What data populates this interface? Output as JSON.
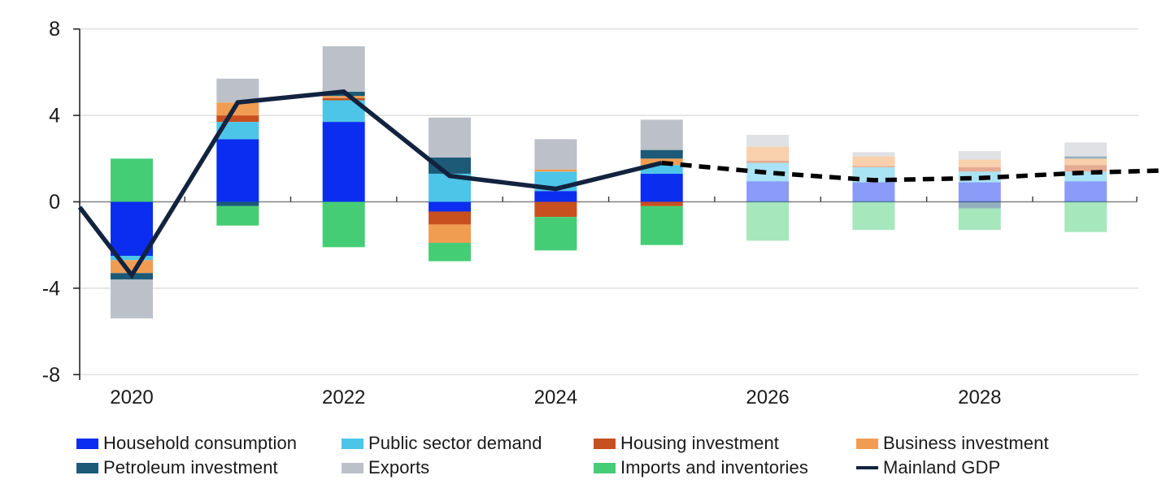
{
  "chart_data": {
    "type": "bar",
    "subtype": "stacked-bar-with-line",
    "title": "",
    "xlabel": "",
    "ylabel": "",
    "ylim": [
      -8,
      8
    ],
    "yticks": [
      8,
      4,
      0,
      -4,
      -8
    ],
    "grid": true,
    "legend_position": "bottom",
    "categories": [
      2020,
      2021,
      2022,
      2023,
      2024,
      2025,
      2026,
      2027,
      2028,
      2029
    ],
    "xtick_labels": [
      "2020",
      "2022",
      "2024",
      "2026",
      "2028"
    ],
    "projection_start_index": 6,
    "series": [
      {
        "key": "household",
        "name": "Household consumption",
        "color": "#0b2df0",
        "values": [
          -2.5,
          2.9,
          3.7,
          -0.45,
          0.5,
          1.3,
          0.95,
          0.9,
          0.9,
          0.95
        ]
      },
      {
        "key": "public",
        "name": "Public sector demand",
        "color": "#4dc5e8",
        "values": [
          -0.2,
          0.8,
          1.0,
          1.3,
          0.9,
          0.4,
          0.85,
          0.7,
          0.5,
          0.45
        ]
      },
      {
        "key": "housing",
        "name": "Housing investment",
        "color": "#c8501e",
        "values": [
          0,
          0.3,
          0.1,
          -0.6,
          -0.7,
          -0.2,
          0.1,
          0.05,
          0.2,
          0.3
        ]
      },
      {
        "key": "business",
        "name": "Business investment",
        "color": "#f09d52",
        "values": [
          -0.6,
          0.6,
          0.1,
          -0.85,
          0.1,
          0.3,
          0.65,
          0.45,
          0.35,
          0.3
        ]
      },
      {
        "key": "petroleum",
        "name": "Petroleum investment",
        "color": "#1c5a78",
        "values": [
          -0.3,
          -0.2,
          0.2,
          0.75,
          0,
          0.4,
          0,
          0,
          -0.3,
          0.1
        ]
      },
      {
        "key": "exports",
        "name": "Exports",
        "color": "#bcc0c9",
        "values": [
          -1.8,
          1.1,
          2.1,
          1.85,
          1.4,
          1.4,
          0.55,
          0.2,
          0.4,
          0.65
        ]
      },
      {
        "key": "imports",
        "name": "Imports and inventories",
        "color": "#44cd74",
        "values": [
          2.0,
          -0.9,
          -2.1,
          -0.85,
          -1.55,
          -1.8,
          -1.8,
          -1.3,
          -1.0,
          -1.4
        ]
      }
    ],
    "line_series": {
      "key": "gdp",
      "name": "Mainland GDP",
      "solid_color": "#12233f",
      "dashed_color": "#000000",
      "values": [
        -3.4,
        4.6,
        5.1,
        1.2,
        0.6,
        1.8,
        1.35,
        1.0,
        1.1,
        1.35
      ],
      "dashed_from_index": 5,
      "edge_start_value": -0.25,
      "edge_end_value": 1.45
    }
  },
  "legend": {
    "items": [
      {
        "label": "Household consumption",
        "series": "household"
      },
      {
        "label": "Public sector demand",
        "series": "public"
      },
      {
        "label": "Housing investment",
        "series": "housing"
      },
      {
        "label": "Business investment",
        "series": "business"
      },
      {
        "label": "Petroleum investment",
        "series": "petroleum"
      },
      {
        "label": "Exports",
        "series": "exports"
      },
      {
        "label": "Imports and inventories",
        "series": "imports"
      },
      {
        "label": "Mainland GDP",
        "series": "gdp"
      }
    ]
  }
}
